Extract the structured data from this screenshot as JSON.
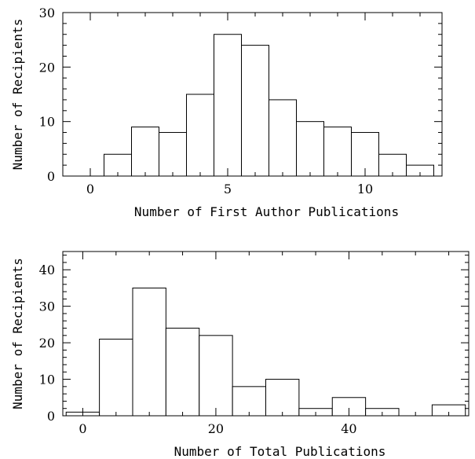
{
  "chart_data": [
    {
      "type": "bar",
      "xlabel": "Number of First Author Publications",
      "ylabel": "Number of Recipients",
      "xlim": [
        -1,
        12.8
      ],
      "ylim": [
        0,
        30
      ],
      "xticks_major": [
        0,
        5,
        10
      ],
      "xticks_minor_step": 1,
      "yticks_major": [
        0,
        10,
        20,
        30
      ],
      "yticks_minor_step": 2,
      "bin_width": 1,
      "x": [
        1,
        2,
        3,
        4,
        5,
        6,
        7,
        8,
        9,
        10,
        11,
        12
      ],
      "values": [
        4,
        9,
        8,
        15,
        26,
        24,
        14,
        10,
        9,
        8,
        4,
        2
      ]
    },
    {
      "type": "bar",
      "xlabel": "Number of Total Publications",
      "ylabel": "Number of Recipients",
      "xlim": [
        -3,
        58
      ],
      "ylim": [
        0,
        45
      ],
      "xticks_major": [
        0,
        20,
        40
      ],
      "xticks_minor_step": 5,
      "yticks_major": [
        0,
        10,
        20,
        30,
        40
      ],
      "yticks_minor_step": 2,
      "bin_width": 5,
      "x": [
        0,
        5,
        10,
        15,
        20,
        25,
        30,
        35,
        40,
        45,
        50,
        55
      ],
      "values": [
        1,
        21,
        35,
        24,
        22,
        8,
        10,
        2,
        5,
        2,
        0,
        3
      ]
    }
  ]
}
